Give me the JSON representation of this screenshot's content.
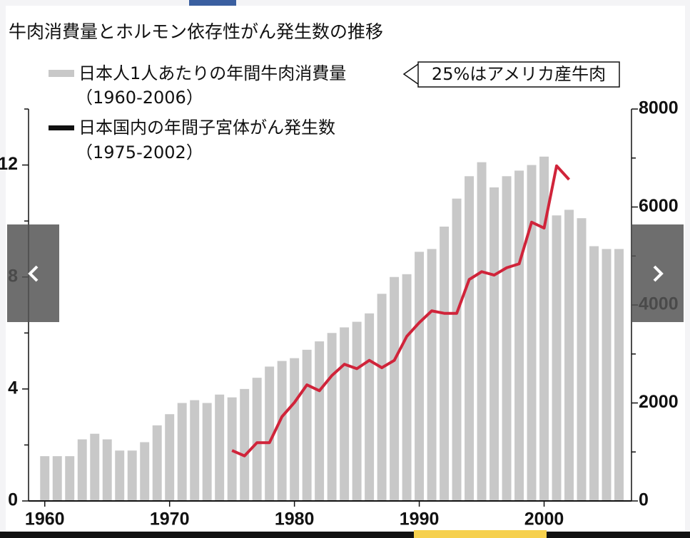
{
  "chart_data": {
    "type": "bar_line",
    "title": "牛肉消費量とホルモン依存性がん発生数の推移",
    "annotation": "25%はアメリカ産牛肉",
    "xlim": [
      1958.7,
      2007
    ],
    "xticks": [
      1960,
      1970,
      1980,
      1990,
      2000
    ],
    "ylim": [
      0,
      14
    ],
    "yticks": [
      0,
      4,
      8,
      12
    ],
    "yminor_ticks": [
      2,
      6,
      10,
      14
    ],
    "y2lim": [
      0,
      8000
    ],
    "y2ticks": [
      0,
      2000,
      4000,
      6000,
      8000
    ],
    "y2minor_ticks": [
      1000,
      3000,
      5000,
      7000
    ],
    "series": [
      {
        "name": "日本人1人あたりの年間牛肉消費量",
        "period": "（1960-2006）",
        "kind": "bar",
        "color": "#c8c8c8",
        "legend_color": "#c8c8c8",
        "x": [
          1960,
          1961,
          1962,
          1963,
          1964,
          1965,
          1966,
          1967,
          1968,
          1969,
          1970,
          1971,
          1972,
          1973,
          1974,
          1975,
          1976,
          1977,
          1978,
          1979,
          1980,
          1981,
          1982,
          1983,
          1984,
          1985,
          1986,
          1987,
          1988,
          1989,
          1990,
          1991,
          1992,
          1993,
          1994,
          1995,
          1996,
          1997,
          1998,
          1999,
          2000,
          2001,
          2002,
          2003,
          2004,
          2005,
          2006
        ],
        "values": [
          1.6,
          1.6,
          1.6,
          2.2,
          2.4,
          2.2,
          1.8,
          1.8,
          2.1,
          2.7,
          3.1,
          3.5,
          3.6,
          3.5,
          3.8,
          3.7,
          4.0,
          4.4,
          4.8,
          5.0,
          5.1,
          5.4,
          5.7,
          6.0,
          6.2,
          6.4,
          6.7,
          7.4,
          8.0,
          8.1,
          8.9,
          9.0,
          9.8,
          10.8,
          11.6,
          12.1,
          11.2,
          11.6,
          11.8,
          12.0,
          12.3,
          10.2,
          10.4,
          10.1,
          9.1,
          9.0,
          9.0
        ]
      },
      {
        "name": "日本国内の年間子宮体がん発生数",
        "period": "（1975-2002）",
        "kind": "line",
        "axis": "y2",
        "color": "#d0243a",
        "legend_color": "#111111",
        "x": [
          1975,
          1976,
          1977,
          1978,
          1979,
          1980,
          1981,
          1982,
          1983,
          1984,
          1985,
          1986,
          1987,
          1988,
          1989,
          1990,
          1991,
          1992,
          1993,
          1994,
          1995,
          1996,
          1997,
          1998,
          1999,
          2000,
          2001,
          2002
        ],
        "values": [
          1030,
          920,
          1190,
          1190,
          1720,
          2010,
          2370,
          2250,
          2560,
          2790,
          2700,
          2870,
          2720,
          2870,
          3360,
          3640,
          3880,
          3830,
          3830,
          4520,
          4680,
          4610,
          4760,
          4840,
          5690,
          5570,
          6840,
          6560
        ]
      }
    ]
  }
}
